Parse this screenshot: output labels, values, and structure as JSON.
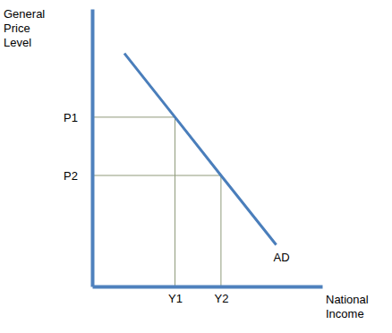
{
  "chart_data": {
    "type": "line",
    "y_label": "General Price Level",
    "x_label": "National Income",
    "x": [
      1.4,
      3.6,
      5.6,
      8.0
    ],
    "series": [
      {
        "name": "AD",
        "color": "#4a7ebb",
        "values": [
          8.4,
          6.1,
          4.0,
          1.5
        ]
      }
    ],
    "xlim": [
      0,
      10
    ],
    "ylim": [
      0,
      10
    ],
    "xticks": [
      {
        "value": 3.6,
        "label": "Y1"
      },
      {
        "value": 5.6,
        "label": "Y2"
      }
    ],
    "yticks": [
      {
        "value": 6.1,
        "label": "P1"
      },
      {
        "value": 4.0,
        "label": "P2"
      }
    ],
    "grid": false
  }
}
